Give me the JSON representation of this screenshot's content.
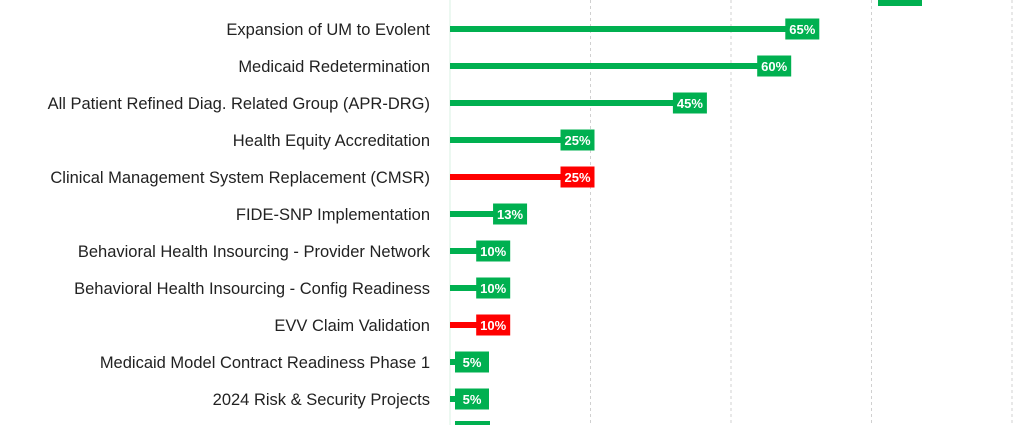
{
  "chart_data": {
    "type": "bar",
    "orientation": "horizontal",
    "title": "",
    "xlabel": "",
    "ylabel": "",
    "xlim": [
      0,
      100
    ],
    "grid": true,
    "legend": "none",
    "categories": [
      "Expansion of UM to Evolent",
      "Medicaid Redetermination",
      "All Patient Refined Diag. Related Group (APR-DRG)",
      "Health Equity Accreditation",
      "Clinical Management System Replacement (CMSR)",
      "FIDE-SNP Implementation",
      "Behavioral Health Insourcing - Provider Network",
      "Behavioral Health Insourcing - Config Readiness",
      "EVV Claim Validation",
      "Medicaid Model Contract Readiness Phase 1",
      "2024 Risk & Security Projects"
    ],
    "values": [
      65,
      60,
      45,
      25,
      25,
      13,
      10,
      10,
      10,
      5,
      5
    ],
    "labels": [
      "65%",
      "60%",
      "45%",
      "25%",
      "25%",
      "13%",
      "10%",
      "10%",
      "10%",
      "5%",
      "5%"
    ],
    "status": [
      "green",
      "green",
      "green",
      "green",
      "red",
      "green",
      "green",
      "green",
      "red",
      "green",
      "green"
    ],
    "colors": {
      "green": "#00b050",
      "red": "#ff0000",
      "grid": "#d0d0d0",
      "axis": "#d9f2e3"
    }
  }
}
